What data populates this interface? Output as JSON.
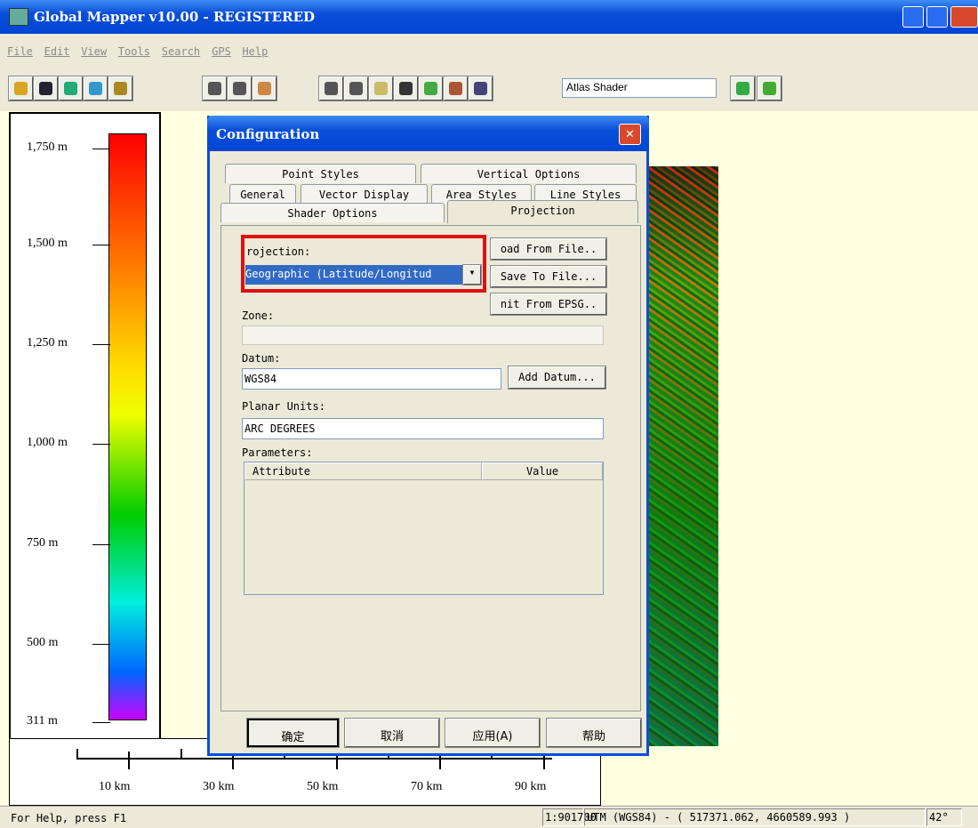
{
  "window": {
    "title": "Global Mapper v10.00 - REGISTERED"
  },
  "menu": [
    "File",
    "Edit",
    "View",
    "Tools",
    "Search",
    "GPS",
    "Help"
  ],
  "toolbar": {
    "shader": "Atlas Shader"
  },
  "legend": {
    "labels": [
      "1,750 m",
      "1,500 m",
      "1,250 m",
      "1,000 m",
      "750 m",
      "500 m",
      "311 m"
    ]
  },
  "scale_bar": {
    "labels": [
      "10 km",
      "30 km",
      "50 km",
      "70 km",
      "90 km"
    ]
  },
  "dialog": {
    "title": "Configuration",
    "tabs": [
      [
        "Point Styles",
        "Vertical Options"
      ],
      [
        "General",
        "Vector Display",
        "Area Styles",
        "Line Styles"
      ],
      [
        "Shader Options",
        "Projection"
      ]
    ],
    "projection_label": "rojection:",
    "projection_value": "Geographic (Latitude/Longitud",
    "buttons": [
      "oad From File..",
      "Save To File...",
      "nit From EPSG.."
    ],
    "zone_label": "Zone:",
    "datum_label": "Datum:",
    "datum_value": "WGS84",
    "add_datum": "Add Datum...",
    "planar_units_label": "Planar Units:",
    "planar_units_value": "ARC DEGREES",
    "parameters_label": "Parameters:",
    "parameters_columns": [
      "Attribute",
      "Value"
    ],
    "footer_buttons": [
      "确定",
      "取消",
      "应用(A)",
      "帮助"
    ]
  },
  "status_bar": {
    "help": "For Help, press F1",
    "scale": "1:901700",
    "coordinates": "UTM (WGS84) - ( 517371.062, 4660589.993 )",
    "angle": "42°"
  }
}
